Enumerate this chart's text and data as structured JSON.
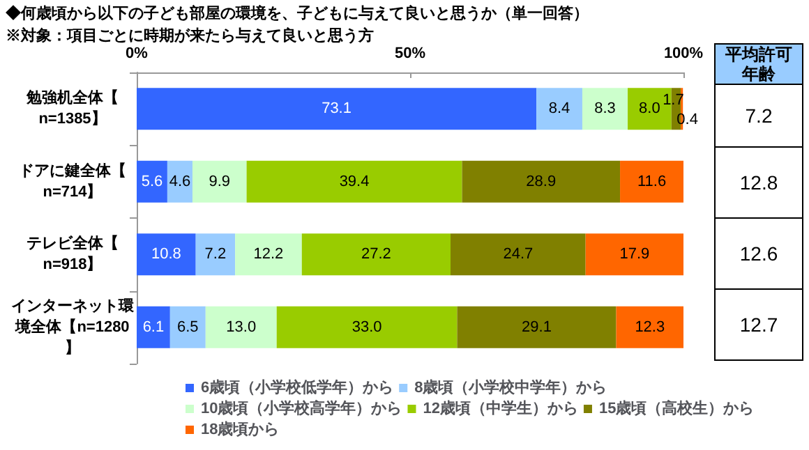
{
  "chart_data": {
    "type": "bar",
    "orientation": "horizontal",
    "stacked": true,
    "title": "◆何歳頃から以下の子ども部屋の環境を、子どもに与えて良いと思うか（単一回答）",
    "subtitle": "※対象：項目ごとに時期が来たら与えて良いと思う方",
    "categories": [
      "勉強机全体【n=1385】",
      "ドアに鍵全体【n=714】",
      "テレビ全体【n=918】",
      "インターネット環境全体【n=1280】"
    ],
    "series": [
      {
        "name": "6歳頃（小学校低学年）から",
        "color": "#3366ff",
        "values": [
          73.1,
          5.6,
          10.8,
          6.1
        ],
        "value_labels": [
          "73.1",
          "5.6",
          "10.8",
          "6.1"
        ]
      },
      {
        "name": "8歳頃（小学校中学年）から",
        "color": "#99ccff",
        "values": [
          8.4,
          4.6,
          7.2,
          6.5
        ],
        "value_labels": [
          "8.4",
          "4.6",
          "7.2",
          "6.5"
        ]
      },
      {
        "name": "10歳頃（小学校高学年）から",
        "color": "#ccffcc",
        "values": [
          8.3,
          9.9,
          12.2,
          13.0
        ],
        "value_labels": [
          "8.3",
          "9.9",
          "12.2",
          "13.0"
        ]
      },
      {
        "name": "12歳頃（中学生）から",
        "color": "#99cc00",
        "values": [
          8.0,
          39.4,
          27.2,
          33.0
        ],
        "value_labels": [
          "8.0",
          "39.4",
          "27.2",
          "33.0"
        ]
      },
      {
        "name": "15歳頃（高校生）から",
        "color": "#808000",
        "values": [
          1.7,
          28.9,
          24.7,
          29.1
        ],
        "value_labels": [
          "1.7",
          "28.9",
          "24.7",
          "29.1"
        ]
      },
      {
        "name": "18歳頃から",
        "color": "#ff6600",
        "values": [
          0.4,
          11.6,
          17.9,
          12.3
        ],
        "value_labels": [
          "0.4",
          "11.6",
          "17.9",
          "12.3"
        ]
      }
    ],
    "xlim": [
      0,
      100
    ],
    "xticks": [
      {
        "value": 0,
        "label": "0%"
      },
      {
        "value": 50,
        "label": "50%"
      },
      {
        "value": 100,
        "label": "100%"
      }
    ],
    "legend": "bottom",
    "annotations": [
      "平均許可年齢",
      "7.2",
      "12.8",
      "12.6",
      "12.7"
    ]
  }
}
